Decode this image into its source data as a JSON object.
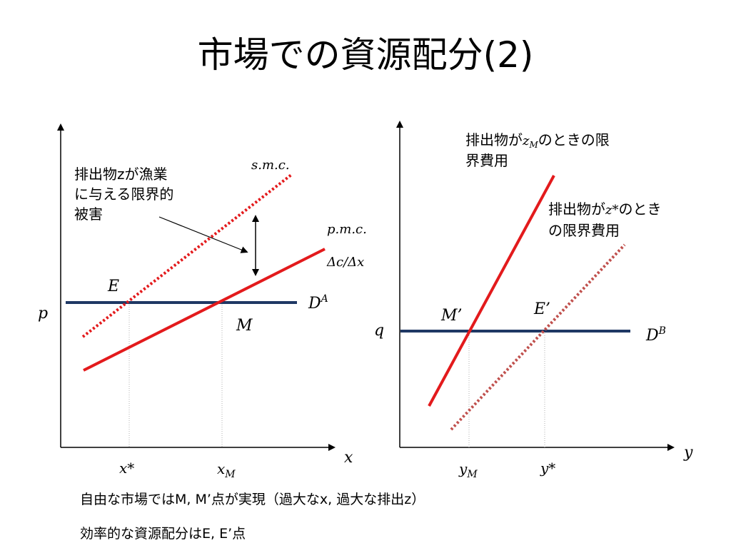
{
  "title": "市場での資源配分(2)",
  "left_diagram": {
    "note_lines": [
      "排出物zが漁業",
      "に与える限界的",
      "被害"
    ],
    "smc_label": "s.m.c.",
    "pmc_label": "p.m.c.",
    "delta_label": "Δc/Δx",
    "point_E": "E",
    "point_M": "M",
    "demand_base": "D",
    "demand_sup": "A",
    "price_label": "p",
    "x_axis_label": "x",
    "x_star_label": "x*",
    "xm_base": "x",
    "xm_sub": "M"
  },
  "right_diagram": {
    "zm_line1_pre": "排出物が",
    "zm_var": "z",
    "zm_sub": "M",
    "zm_line1_post": "のときの限",
    "zm_line2": "界費用",
    "zstar_line1_pre": "排出物が",
    "zstar_var": "z*",
    "zstar_line1_post": "のとき",
    "zstar_line2": "の限界費用",
    "point_Mp": "M’",
    "point_Ep": "E’",
    "demand_base": "D",
    "demand_sup": "B",
    "price_label": "q",
    "y_axis_label": "y",
    "ym_base": "y",
    "ym_sub": "M",
    "y_star_label": "y*"
  },
  "bottom_lines": [
    "自由な市場ではM, M’点が実現（過大なx, 過大な排出z）",
    "効率的な資源配分はE, E’点"
  ],
  "colors": {
    "supply": "#e31a1c",
    "dotted_supply_right": "#c0504d",
    "demand": "#1f3864",
    "guide": "#b0b0b0",
    "axis": "#000000"
  }
}
